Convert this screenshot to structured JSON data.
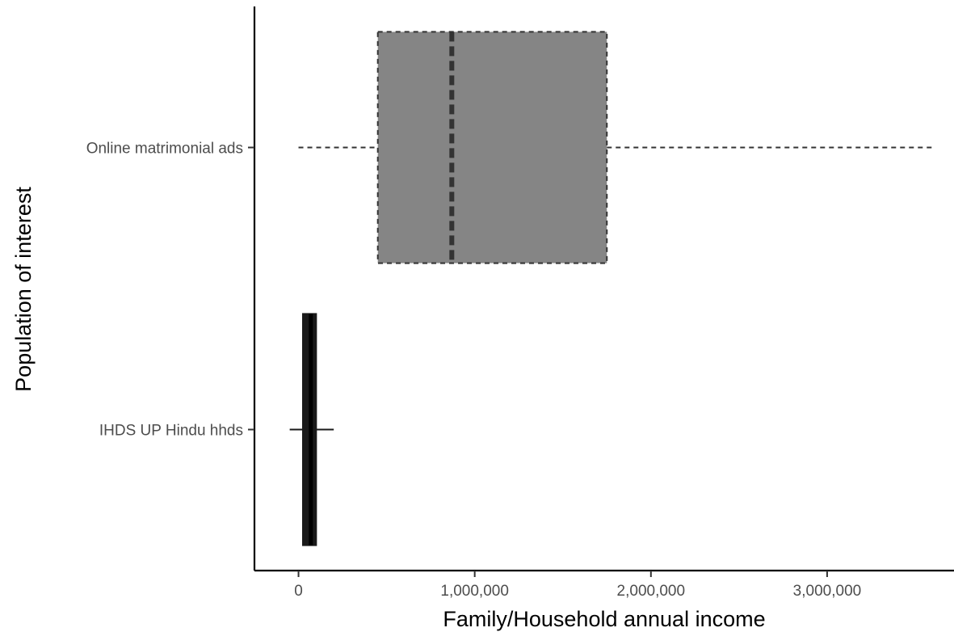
{
  "chart_data": {
    "type": "boxplot",
    "orientation": "horizontal",
    "xlabel": "Family/Household annual income",
    "ylabel": "Population of interest",
    "xlim": [
      -250000,
      3720000
    ],
    "x_ticks": [
      0,
      1000000,
      2000000,
      3000000
    ],
    "x_tick_labels": [
      "0",
      "1,000,000",
      "2,000,000",
      "3,000,000"
    ],
    "grid": false,
    "legend": "none",
    "categories": [
      "Online matrimonial ads",
      "IHDS UP Hindu hhds"
    ],
    "boxes": [
      {
        "category": "Online matrimonial ads",
        "whisker_low": 0,
        "q1": 450000,
        "median": 870000,
        "q3": 1750000,
        "whisker_high": 3600000,
        "fill": "#858585",
        "line_style": "dashed"
      },
      {
        "category": "IHDS UP Hindu hhds",
        "whisker_low": -50000,
        "q1": 25000,
        "median": 70000,
        "q3": 100000,
        "whisker_high": 200000,
        "fill": "#1a1a1a",
        "line_style": "solid"
      }
    ]
  }
}
